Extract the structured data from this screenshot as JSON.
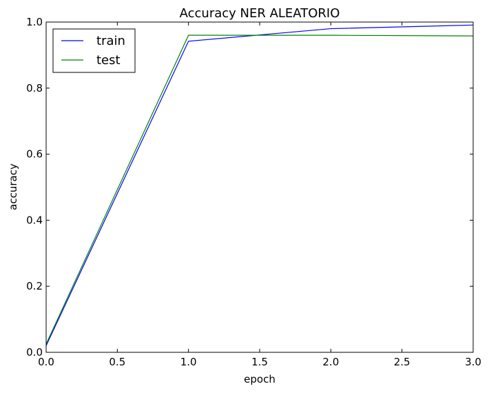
{
  "chart_data": {
    "type": "line",
    "title": "Accuracy NER ALEATORIO",
    "xlabel": "epoch",
    "ylabel": "accuracy",
    "xlim": [
      0,
      3
    ],
    "ylim": [
      0,
      1
    ],
    "x_ticks": [
      "0.0",
      "0.5",
      "1.0",
      "1.5",
      "2.0",
      "2.5",
      "3.0"
    ],
    "y_ticks": [
      "0.0",
      "0.2",
      "0.4",
      "0.6",
      "0.8",
      "1.0"
    ],
    "grid": false,
    "legend_position": "top-left",
    "x": [
      0,
      1,
      2,
      3
    ],
    "series": [
      {
        "name": "train",
        "color": "#0000ff",
        "values": [
          0.02,
          0.942,
          0.98,
          0.991
        ]
      },
      {
        "name": "test",
        "color": "#008000",
        "values": [
          0.025,
          0.96,
          0.96,
          0.958
        ]
      }
    ]
  }
}
